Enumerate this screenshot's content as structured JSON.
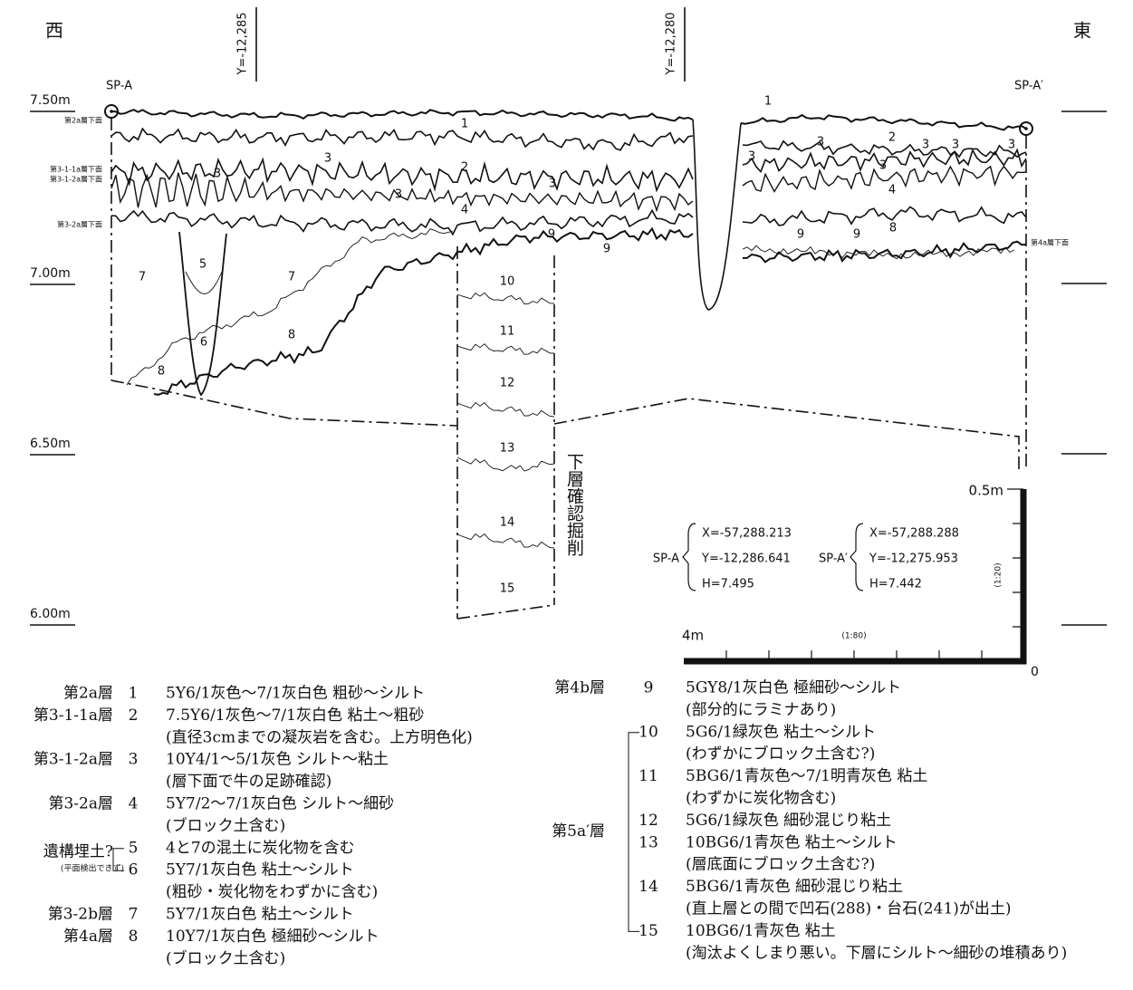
{
  "directions": {
    "west": "西",
    "east": "東"
  },
  "grid_lines": [
    "Y=-12,285",
    "Y=-12,280"
  ],
  "points": [
    "SP-A",
    "SP-A′"
  ],
  "elevations": [
    "7.50m",
    "7.00m",
    "6.50m",
    "6.00m"
  ],
  "layer_surfaces": [
    "第2a層下面",
    "第3-1-1a層下面",
    "第3-1-2a層下面",
    "第3-2a層下面",
    "第4a層下面"
  ],
  "section_numbers": [
    "1",
    "1",
    "2",
    "2",
    "3",
    "3",
    "3",
    "3",
    "3",
    "3",
    "3",
    "3",
    "3",
    "3",
    "4",
    "4",
    "5",
    "6",
    "7",
    "7",
    "8",
    "8",
    "8",
    "9",
    "9",
    "9",
    "9",
    "10",
    "11",
    "12",
    "13",
    "14",
    "15"
  ],
  "excavation_note": "下層確認掘削",
  "coordinates": [
    {
      "point": "SP-A",
      "lines": [
        "X=-57,288.213",
        "Y=-12,286.641",
        "H=7.495"
      ]
    },
    {
      "point": "SP-A′",
      "lines": [
        "X=-57,288.288",
        "Y=-12,275.953",
        "H=7.442"
      ]
    }
  ],
  "scale": {
    "vertical": "0.5m",
    "horizontal": "4m",
    "horizontal_ratio": "(1:80)",
    "vertical_ratio": "(1:20)",
    "origin": "0"
  },
  "legend": {
    "left": [
      {
        "layer": "第2a層",
        "items": [
          {
            "no": "1",
            "lines": [
              "5Y6/1灰色〜7/1灰白色 粗砂〜シルト"
            ]
          }
        ]
      },
      {
        "layer": "第3-1-1a層",
        "items": [
          {
            "no": "2",
            "lines": [
              "7.5Y6/1灰色〜7/1灰白色 粘土〜粗砂",
              "(直径3cmまでの凝灰岩を含む。上方明色化)"
            ]
          }
        ]
      },
      {
        "layer": "第3-1-2a層",
        "items": [
          {
            "no": "3",
            "lines": [
              "10Y4/1〜5/1灰色 シルト〜粘土",
              "(層下面で牛の足跡確認)"
            ]
          }
        ]
      },
      {
        "layer": "第3-2a層",
        "items": [
          {
            "no": "4",
            "lines": [
              "5Y7/2〜7/1灰白色 シルト〜細砂",
              "(ブロック土含む)"
            ]
          }
        ]
      },
      {
        "layer": "遺構埋土?",
        "note": "(平面検出できず)",
        "items": [
          {
            "no": "5",
            "lines": [
              "4と7の混土に炭化物を含む"
            ]
          },
          {
            "no": "6",
            "lines": [
              "5Y7/1灰白色 粘土〜シルト",
              "(粗砂・炭化物をわずかに含む)"
            ]
          }
        ]
      },
      {
        "layer": "第3-2b層",
        "items": [
          {
            "no": "7",
            "lines": [
              "5Y7/1灰白色 粘土〜シルト"
            ]
          }
        ]
      },
      {
        "layer": "第4a層",
        "items": [
          {
            "no": "8",
            "lines": [
              "10Y7/1灰白色 極細砂〜シルト",
              "(ブロック土含む)"
            ]
          }
        ]
      }
    ],
    "right": [
      {
        "layer": "第4b層",
        "items": [
          {
            "no": "9",
            "lines": [
              "5GY8/1灰白色 極細砂〜シルト",
              "(部分的にラミナあり)"
            ]
          }
        ]
      },
      {
        "layer": "第5a′層",
        "items": [
          {
            "no": "10",
            "lines": [
              "5G6/1緑灰色 粘土〜シルト",
              "(わずかにブロック土含む?)"
            ]
          },
          {
            "no": "11",
            "lines": [
              "5BG6/1青灰色〜7/1明青灰色 粘土",
              "(わずかに炭化物含む)"
            ]
          },
          {
            "no": "12",
            "lines": [
              "5G6/1緑灰色 細砂混じり粘土"
            ]
          },
          {
            "no": "13",
            "lines": [
              "10BG6/1青灰色 粘土〜シルト",
              "(層底面にブロック土含む?)"
            ]
          },
          {
            "no": "14",
            "lines": [
              "5BG6/1青灰色 細砂混じり粘土",
              "(直上層との間で凹石(288)・台石(241)が出土)"
            ]
          },
          {
            "no": "15",
            "lines": [
              "10BG6/1青灰色 粘土",
              "(淘汰よくしまり悪い。下層にシルト〜細砂の堆積あり)"
            ]
          }
        ]
      }
    ]
  }
}
